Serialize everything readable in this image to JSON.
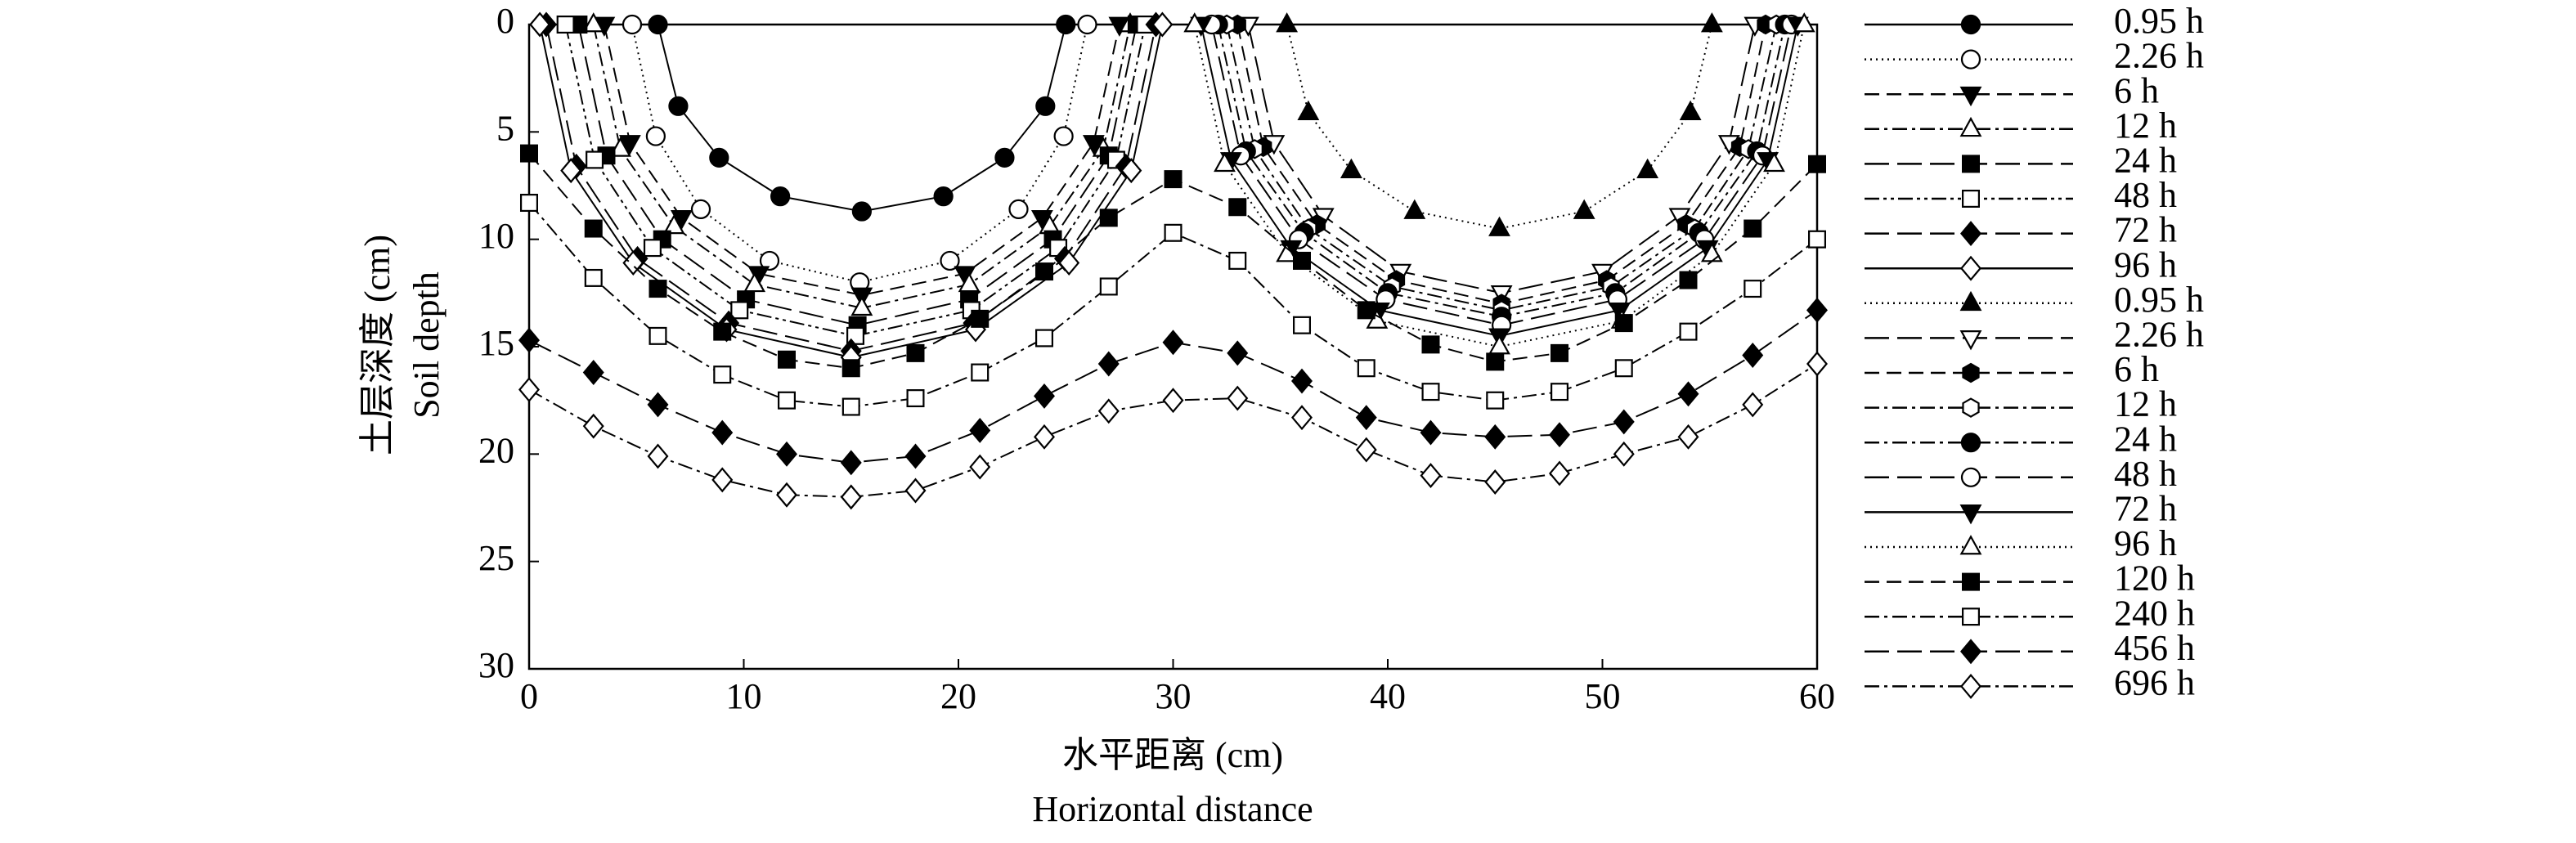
{
  "chart_data": {
    "type": "line",
    "x_label": "水平距离 (cm)",
    "x_label_en": "Horizontal distance",
    "y_label": "土层深度 (cm)",
    "y_label_en": "Soil depth",
    "xlim": [
      0,
      60
    ],
    "xticks": [
      0,
      10,
      20,
      30,
      40,
      50,
      60
    ],
    "ylim": [
      0,
      30
    ],
    "yticks": [
      0,
      5,
      10,
      15,
      20,
      25,
      30
    ],
    "y_reversed": true,
    "legend": "right",
    "series": [
      {
        "name": "0.95 h",
        "color": "#000000",
        "marker": "circle",
        "filled": true,
        "dash": "solid",
        "x": [
          6,
          6.95,
          8.85,
          11.7,
          15.5,
          19.3,
          22.15,
          24.05,
          25
        ],
        "values": [
          0,
          3.8,
          6.2,
          8.0,
          8.7,
          8.0,
          6.2,
          3.8,
          0
        ]
      },
      {
        "name": "2.26 h",
        "color": "#000000",
        "marker": "circle",
        "filled": false,
        "dash": "dotted",
        "x": [
          4.8,
          5.9,
          8.0,
          11.2,
          15.4,
          19.6,
          22.8,
          24.9,
          26
        ],
        "values": [
          0,
          5.2,
          8.6,
          11.0,
          12,
          11.0,
          8.6,
          5.2,
          0
        ]
      },
      {
        "name": "6 h",
        "color": "#000000",
        "marker": "triangle-down",
        "filled": true,
        "dash": "dashed",
        "x": [
          3.5,
          4.7,
          7.1,
          10.7,
          15.5,
          20.3,
          23.9,
          26.3,
          27.5
        ],
        "values": [
          0,
          5.5,
          9.0,
          11.6,
          12.6,
          11.6,
          9.0,
          5.5,
          0
        ]
      },
      {
        "name": "12 h",
        "color": "#000000",
        "marker": "triangle-up",
        "filled": false,
        "dash": "dashdot",
        "x": [
          3,
          4.25,
          6.75,
          10.5,
          15.5,
          20.5,
          24.25,
          26.75,
          28
        ],
        "values": [
          0,
          5.8,
          9.4,
          12.1,
          13.2,
          12.1,
          9.4,
          5.8,
          0
        ]
      },
      {
        "name": "24 h",
        "color": "#000000",
        "marker": "square",
        "filled": true,
        "dash": "longdash",
        "x": [
          2.3,
          3.6,
          6.2,
          10.1,
          15.3,
          20.5,
          24.4,
          27,
          28.3
        ],
        "values": [
          0,
          6.1,
          10.0,
          12.8,
          14,
          12.8,
          10.0,
          6.1,
          0
        ]
      },
      {
        "name": "48 h",
        "color": "#000000",
        "marker": "square",
        "filled": false,
        "dash": "dashdotdot",
        "x": [
          1.7,
          3.05,
          5.75,
          9.8,
          15.2,
          20.6,
          24.65,
          27.35,
          28.7
        ],
        "values": [
          0,
          6.3,
          10.4,
          13.3,
          14.5,
          13.3,
          10.4,
          6.3,
          0
        ]
      },
      {
        "name": "72 h",
        "color": "#000000",
        "marker": "diamond",
        "filled": true,
        "dash": "longdash",
        "x": [
          0.8,
          2.2,
          5.05,
          9.3,
          15,
          20.7,
          24.95,
          27.8,
          29.2
        ],
        "values": [
          0,
          6.6,
          10.9,
          13.9,
          15.2,
          13.9,
          10.9,
          6.6,
          0
        ]
      },
      {
        "name": "96 h",
        "color": "#000000",
        "marker": "diamond",
        "filled": false,
        "dash": "solid",
        "x": [
          0.5,
          1.95,
          4.85,
          9.2,
          15,
          20.8,
          25.15,
          28.05,
          29.5
        ],
        "values": [
          0,
          6.8,
          11.1,
          14.2,
          15.5,
          14.2,
          11.1,
          6.8,
          0
        ]
      },
      {
        "name": "0.95 h",
        "color": "#000000",
        "marker": "triangle-up",
        "filled": true,
        "dash": "dotted",
        "x": [
          35.3,
          36.3,
          38.3,
          41.25,
          45.2,
          49.15,
          52.1,
          54.1,
          55.1
        ],
        "values": [
          0,
          4.1,
          6.8,
          8.7,
          9.5,
          8.7,
          6.8,
          4.1,
          0
        ]
      },
      {
        "name": "2.26 h",
        "color": "#000000",
        "marker": "triangle-down",
        "filled": false,
        "dash": "longdash",
        "x": [
          33.5,
          34.7,
          37.0,
          40.6,
          45.3,
          50,
          53.6,
          55.9,
          57.1
        ],
        "values": [
          0,
          5.5,
          8.9,
          11.5,
          12.5,
          11.5,
          8.9,
          5.5,
          0
        ]
      },
      {
        "name": "6 h",
        "color": "#000000",
        "marker": "hexagon",
        "filled": true,
        "dash": "dashed",
        "x": [
          33,
          34.2,
          36.7,
          40.4,
          45.3,
          50.2,
          53.9,
          56.4,
          57.6
        ],
        "values": [
          0,
          5.7,
          9.3,
          11.9,
          13,
          11.9,
          9.3,
          5.7,
          0
        ]
      },
      {
        "name": "12 h",
        "color": "#000000",
        "marker": "hexagon",
        "filled": false,
        "dash": "dashdot",
        "x": [
          32.5,
          33.8,
          36.3,
          40.2,
          45.3,
          50.4,
          54.3,
          56.8,
          58.1
        ],
        "values": [
          0,
          5.8,
          9.5,
          12.2,
          13.3,
          12.2,
          9.5,
          5.8,
          0
        ]
      },
      {
        "name": "24 h",
        "color": "#000000",
        "marker": "circle",
        "filled": true,
        "dash": "dashdot",
        "x": [
          32.1,
          33.4,
          36.1,
          40,
          45.3,
          50.6,
          54.5,
          57.2,
          58.5
        ],
        "values": [
          0,
          5.9,
          9.7,
          12.5,
          13.6,
          12.5,
          9.7,
          5.9,
          0
        ]
      },
      {
        "name": "48 h",
        "color": "#000000",
        "marker": "circle",
        "filled": false,
        "dash": "longdash",
        "x": [
          31.8,
          33.15,
          35.85,
          39.9,
          45.3,
          50.7,
          54.75,
          57.45,
          58.8
        ],
        "values": [
          0,
          6.1,
          10.0,
          12.8,
          14,
          12.8,
          10.0,
          6.1,
          0
        ]
      },
      {
        "name": "72 h",
        "color": "#000000",
        "marker": "triangle-down",
        "filled": true,
        "dash": "solid",
        "x": [
          31.3,
          32.7,
          35.5,
          39.6,
          45.2,
          50.8,
          54.9,
          57.7,
          59.1
        ],
        "values": [
          0,
          6.3,
          10.4,
          13.3,
          14.5,
          13.3,
          10.4,
          6.3,
          0
        ]
      },
      {
        "name": "96 h",
        "color": "#000000",
        "marker": "triangle-up",
        "filled": false,
        "dash": "dotted",
        "x": [
          31,
          32.4,
          35.3,
          39.5,
          45.2,
          50.9,
          55.1,
          58,
          59.4
        ],
        "values": [
          0,
          6.5,
          10.7,
          13.8,
          15,
          13.8,
          10.7,
          6.5,
          0
        ]
      },
      {
        "name": "120 h",
        "color": "#000000",
        "marker": "square",
        "filled": true,
        "dash": "dashed",
        "x": [
          0,
          3,
          6,
          9,
          12,
          15,
          18,
          21,
          24,
          27,
          30,
          33,
          36,
          39,
          42,
          45,
          48,
          51,
          54,
          57,
          60
        ],
        "values": [
          6,
          9.5,
          12.3,
          14.3,
          15.6,
          16,
          15.3,
          13.7,
          11.5,
          9,
          7.2,
          8.5,
          11,
          13.3,
          14.9,
          15.7,
          15.3,
          13.9,
          11.9,
          9.5,
          6.5
        ]
      },
      {
        "name": "240 h",
        "color": "#000000",
        "marker": "square",
        "filled": false,
        "dash": "dashdot",
        "x": [
          0,
          3,
          6,
          9,
          12,
          15,
          18,
          21,
          24,
          27,
          30,
          33,
          36,
          39,
          42,
          45,
          48,
          51,
          54,
          57,
          60
        ],
        "values": [
          8.3,
          11.8,
          14.5,
          16.3,
          17.5,
          17.8,
          17.4,
          16.2,
          14.6,
          12.2,
          9.7,
          11,
          14,
          16,
          17.1,
          17.5,
          17.1,
          16,
          14.3,
          12.3,
          10
        ]
      },
      {
        "name": "456 h",
        "color": "#000000",
        "marker": "diamond",
        "filled": true,
        "dash": "longdash",
        "x": [
          0,
          3,
          6,
          9,
          12,
          15,
          18,
          21,
          24,
          27,
          30,
          33,
          36,
          39,
          42,
          45,
          48,
          51,
          54,
          57,
          60
        ],
        "values": [
          14.7,
          16.2,
          17.7,
          19,
          20,
          20.4,
          20.1,
          18.9,
          17.3,
          15.8,
          14.8,
          15.3,
          16.6,
          18.3,
          19,
          19.2,
          19.1,
          18.5,
          17.2,
          15.4,
          13.3
        ]
      },
      {
        "name": "696 h",
        "color": "#000000",
        "marker": "diamond",
        "filled": false,
        "dash": "dashdot",
        "x": [
          0,
          3,
          6,
          9,
          12,
          15,
          18,
          21,
          24,
          27,
          30,
          33,
          36,
          39,
          42,
          45,
          48,
          51,
          54,
          57,
          60
        ],
        "values": [
          17,
          18.7,
          20.1,
          21.2,
          21.9,
          22,
          21.7,
          20.6,
          19.2,
          18,
          17.5,
          17.4,
          18.3,
          19.8,
          21,
          21.3,
          20.9,
          20,
          19.2,
          17.7,
          15.8
        ]
      }
    ]
  }
}
